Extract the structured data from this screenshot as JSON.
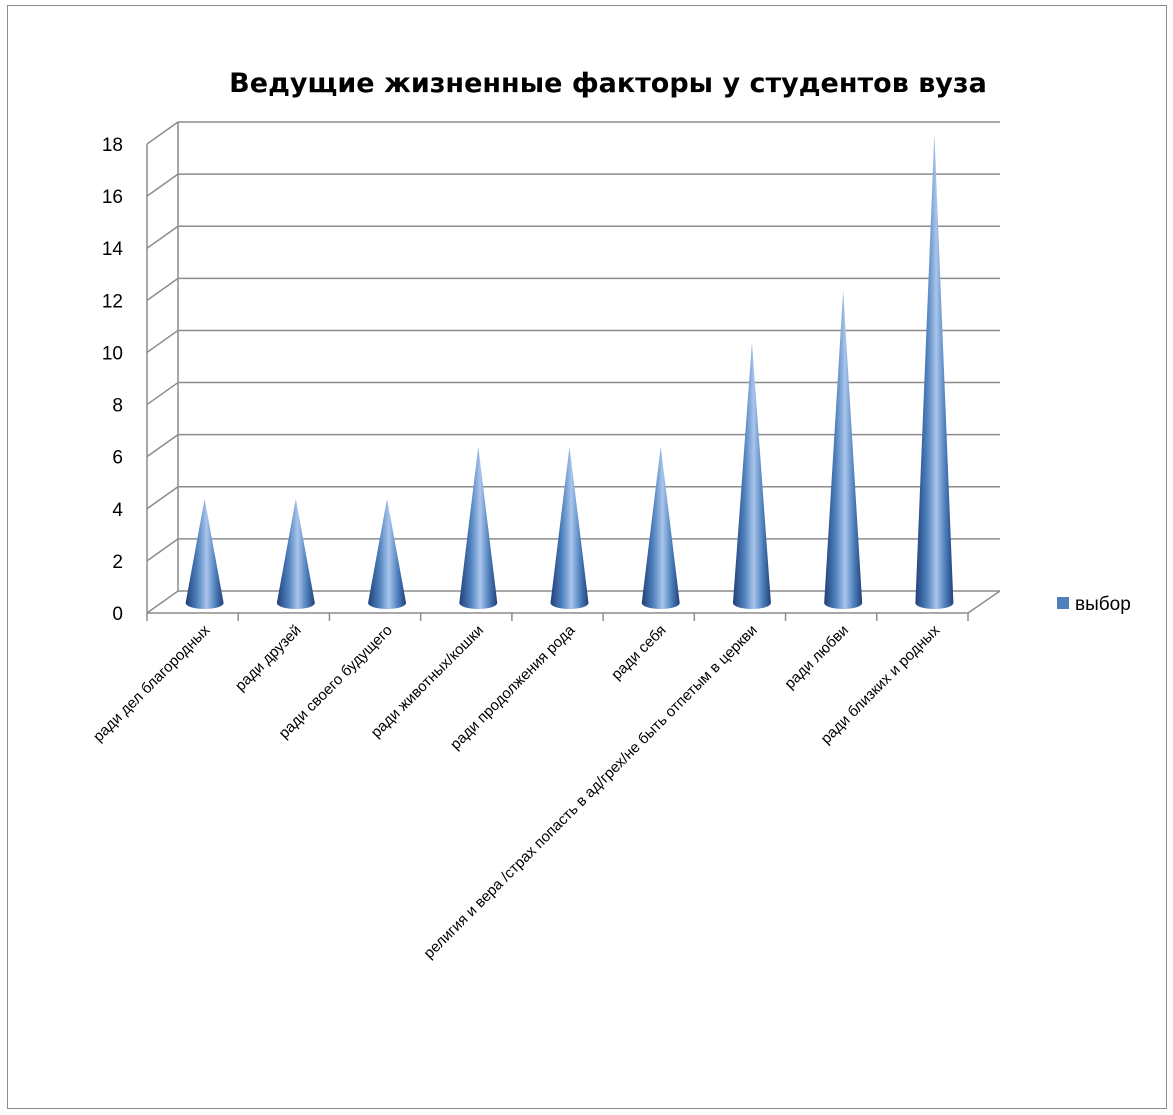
{
  "chart_data": {
    "type": "bar",
    "shape": "cone",
    "title": "Ведущие жизненные факторы у студентов вуза",
    "xlabel": "",
    "ylabel": "",
    "ylim": [
      0,
      18
    ],
    "yticks": [
      0,
      2,
      4,
      6,
      8,
      10,
      12,
      14,
      16,
      18
    ],
    "grid": true,
    "legend": "right",
    "categories": [
      "ради дел благородных",
      "ради друзей",
      "ради своего будущего",
      "ради животных/кошки",
      "ради продолжения рода",
      "ради себя",
      "религия и вера /страх попасть в ад/грех/не быть отпетым в церкви",
      "ради любви",
      "ради близких и родных"
    ],
    "series": [
      {
        "name": "выбор",
        "values": [
          4,
          4,
          4,
          6,
          6,
          6,
          10,
          12,
          18
        ],
        "color": "#4f81bd"
      }
    ]
  }
}
